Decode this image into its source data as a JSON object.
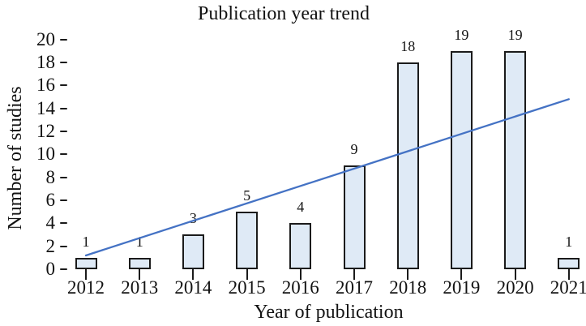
{
  "figure": {
    "title": "Publication year trend",
    "x_axis_title": "Year of publication",
    "y_axis_title": "Number of studies"
  },
  "chart_data": {
    "type": "bar",
    "title": "Publication year trend",
    "xlabel": "Year of publication",
    "ylabel": "Number of studies",
    "categories": [
      "2012",
      "2013",
      "2014",
      "2015",
      "2016",
      "2017",
      "2018",
      "2019",
      "2020",
      "2021"
    ],
    "values": [
      1,
      1,
      3,
      5,
      4,
      9,
      18,
      19,
      19,
      1
    ],
    "bar_value_labels": [
      "1",
      "1",
      "3",
      "5",
      "4",
      "9",
      "18",
      "19",
      "19",
      "1"
    ],
    "ylim": [
      0,
      20
    ],
    "yticks": [
      0,
      2,
      4,
      6,
      8,
      10,
      12,
      14,
      16,
      18,
      20
    ],
    "grid": false,
    "legend": "none",
    "colors": {
      "bar_fill": "#dfeaf6",
      "bar_border": "#1b1b1b",
      "trend_line": "#4472c4",
      "text": "#131313"
    },
    "trendline": {
      "type": "linear",
      "start": {
        "x": "2012",
        "y": 1.2
      },
      "end": {
        "x": "2021",
        "y": 14.8
      }
    }
  }
}
